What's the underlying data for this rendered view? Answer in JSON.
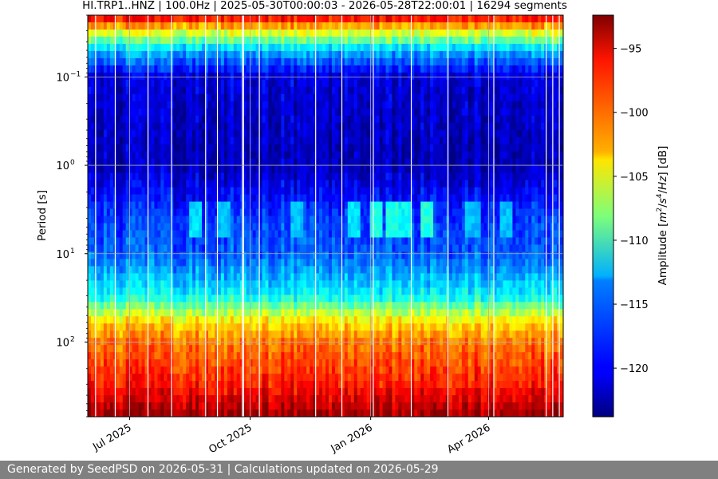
{
  "chart_data": {
    "type": "heatmap",
    "title": "HI.TRP1..HNZ | 100.0Hz | 2025-05-30T00:00:03 - 2026-05-28T22:00:01 | 16294 segments",
    "xlabel": "",
    "ylabel": "Period [s]",
    "x_tick_labels": [
      "Jul 2025",
      "Oct 2025",
      "Jan 2026",
      "Apr 2026"
    ],
    "x_ticks": [
      "2025-07-01",
      "2025-10-01",
      "2026-01-01",
      "2026-04-01"
    ],
    "xlim": [
      "2025-05-30",
      "2026-05-28"
    ],
    "y_scale": "log",
    "y_inverted": true,
    "ylim": [
      0.02,
      700
    ],
    "y_ticks": [
      0.1,
      1,
      10,
      100
    ],
    "y_tick_labels": [
      "10",
      "10",
      "10",
      "10"
    ],
    "y_tick_exponents": [
      "−1",
      "0",
      "1",
      "2"
    ],
    "grid": true,
    "colorbar": {
      "label": "Amplitude [m²/s⁴/Hz] [dB]",
      "label_parts": [
        "Amplitude [",
        "m",
        "2",
        "/",
        "s",
        "4",
        "/",
        "Hz",
        "] [dB]"
      ],
      "range": [
        -123.8,
        -92.4
      ],
      "ticks": [
        -95,
        -100,
        -105,
        -110,
        -115,
        -120
      ],
      "tick_labels": [
        "−95",
        "−100",
        "−105",
        "−110",
        "−115",
        "−120"
      ],
      "colormap": "jet"
    },
    "period_profile": [
      {
        "period": 0.02,
        "amplitude": -95
      },
      {
        "period": 0.03,
        "amplitude": -104
      },
      {
        "period": 0.05,
        "amplitude": -114
      },
      {
        "period": 0.1,
        "amplitude": -121
      },
      {
        "period": 1,
        "amplitude": -122
      },
      {
        "period": 4,
        "amplitude": -118
      },
      {
        "period": 10,
        "amplitude": -117
      },
      {
        "period": 30,
        "amplitude": -112
      },
      {
        "period": 60,
        "amplitude": -103
      },
      {
        "period": 100,
        "amplitude": -100
      },
      {
        "period": 300,
        "amplitude": -97
      },
      {
        "period": 700,
        "amplitude": -93
      }
    ],
    "microseism_events": [
      {
        "date": "2025-08-20",
        "period": 4,
        "amplitude": -113
      },
      {
        "date": "2025-09-10",
        "period": 4,
        "amplitude": -114
      },
      {
        "date": "2025-11-05",
        "period": 4,
        "amplitude": -114
      },
      {
        "date": "2025-12-20",
        "period": 4,
        "amplitude": -113
      },
      {
        "date": "2026-01-05",
        "period": 4,
        "amplitude": -111
      },
      {
        "date": "2026-01-18",
        "period": 4,
        "amplitude": -111
      },
      {
        "date": "2026-01-28",
        "period": 4,
        "amplitude": -112
      },
      {
        "date": "2026-02-12",
        "period": 4,
        "amplitude": -111
      },
      {
        "date": "2026-03-20",
        "period": 4,
        "amplitude": -114
      },
      {
        "date": "2026-04-15",
        "period": 4,
        "amplitude": -114
      }
    ],
    "data_gaps": [
      "2025-06-05",
      "2025-06-20",
      "2025-07-15",
      "2025-08-02",
      "2025-08-28",
      "2025-09-06",
      "2025-09-25",
      "2025-09-26",
      "2025-10-08",
      "2025-11-20",
      "2025-12-10",
      "2026-01-03",
      "2026-02-01",
      "2026-03-01",
      "2026-04-05",
      "2026-05-15",
      "2026-05-20",
      "2026-05-25"
    ]
  },
  "footer": {
    "text": "Generated by SeedPSD on 2026-05-31 | Calculations updated on 2026-05-29"
  }
}
